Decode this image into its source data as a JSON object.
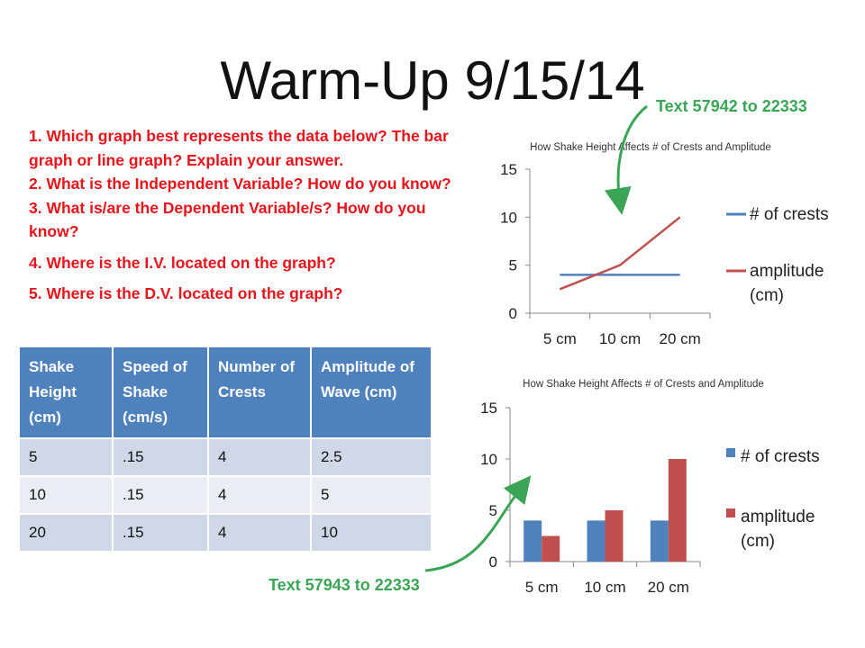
{
  "title": "Warm-Up 9/15/14",
  "text_top": "Text 57942 to 22333",
  "text_bottom": "Text 57943 to 22333",
  "questions": [
    "1. Which graph best represents the data below? The bar graph or line graph? Explain your answer.",
    "2. What is the Independent Variable? How do you know?",
    "3. What is/are the Dependent Variable/s? How do you know?",
    "4. Where is the I.V. located on the graph?",
    "5. Where is the D.V. located on the graph?"
  ],
  "table": {
    "headers": [
      "Shake Height (cm)",
      "Speed of Shake (cm/s)",
      "Number of Crests",
      "Amplitude of Wave (cm)"
    ],
    "rows": [
      [
        "5",
        ".15",
        "4",
        "2.5"
      ],
      [
        "10",
        ".15",
        "4",
        "5"
      ],
      [
        "20",
        ".15",
        "4",
        "10"
      ]
    ]
  },
  "colors": {
    "title": "#111111",
    "questions": "#e8141b",
    "green": "#3aa655",
    "blue_series": "#4f81bd",
    "red_series": "#c0504d",
    "table_header": "#4f81bd"
  },
  "chart_data": [
    {
      "type": "line",
      "title": "How Shake Height Affects # of Crests and Amplitude",
      "categories": [
        "5 cm",
        "10 cm",
        "20 cm"
      ],
      "series": [
        {
          "name": "# of crests",
          "values": [
            4,
            4,
            4
          ],
          "color": "#4f81bd"
        },
        {
          "name": "amplitude (cm)",
          "values": [
            2.5,
            5,
            10
          ],
          "color": "#c0504d"
        }
      ],
      "yticks": [
        "0",
        "5",
        "10",
        "15"
      ],
      "ylim": [
        0,
        15
      ],
      "xlabel": "",
      "ylabel": "",
      "grid": false,
      "legend": "right"
    },
    {
      "type": "bar",
      "title": "How Shake Height Affects # of Crests and Amplitude",
      "categories": [
        "5 cm",
        "10 cm",
        "20 cm"
      ],
      "series": [
        {
          "name": "# of crests",
          "values": [
            4,
            4,
            4
          ],
          "color": "#4f81bd"
        },
        {
          "name": "amplitude (cm)",
          "values": [
            2.5,
            5,
            10
          ],
          "color": "#c0504d"
        }
      ],
      "yticks": [
        "0",
        "5",
        "10",
        "15"
      ],
      "ylim": [
        0,
        15
      ],
      "xlabel": "",
      "ylabel": "",
      "grid": false,
      "legend": "right"
    }
  ]
}
